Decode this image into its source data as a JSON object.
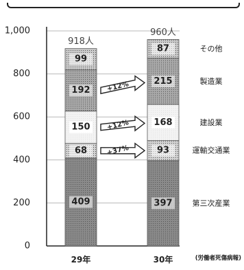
{
  "chart_data": {
    "type": "bar",
    "stacked": true,
    "categories": [
      "29年",
      "30年"
    ],
    "series": [
      {
        "name": "第三次産業",
        "values": [
          409,
          397
        ]
      },
      {
        "name": "運輸交通業",
        "values": [
          68,
          93
        ]
      },
      {
        "name": "建設業",
        "values": [
          150,
          168
        ]
      },
      {
        "name": "製造業",
        "values": [
          192,
          215
        ]
      },
      {
        "name": "その他",
        "values": [
          99,
          87
        ]
      }
    ],
    "totals": [
      "918人",
      "960人"
    ],
    "growth_annotations": [
      {
        "series": "運輸交通業",
        "label": "+37%"
      },
      {
        "series": "建設業",
        "label": "+12%"
      },
      {
        "series": "製造業",
        "label": "+12%"
      }
    ],
    "ylim": [
      0,
      1000
    ],
    "yticks": [
      "0",
      "200",
      "400",
      "600",
      "800",
      "1,000"
    ],
    "ytick_values": [
      0,
      200,
      400,
      600,
      800,
      1000
    ],
    "grid": true,
    "source": "(労働者死傷病報)",
    "colors": {
      "第三次産業": "#8a8a8a",
      "運輸交通業": "#d2d2d2",
      "建設業": "#f3f3f3",
      "製造業": "#a9a9a9",
      "その他": "#c9c9c9",
      "grid": "#b8b8b8"
    }
  }
}
